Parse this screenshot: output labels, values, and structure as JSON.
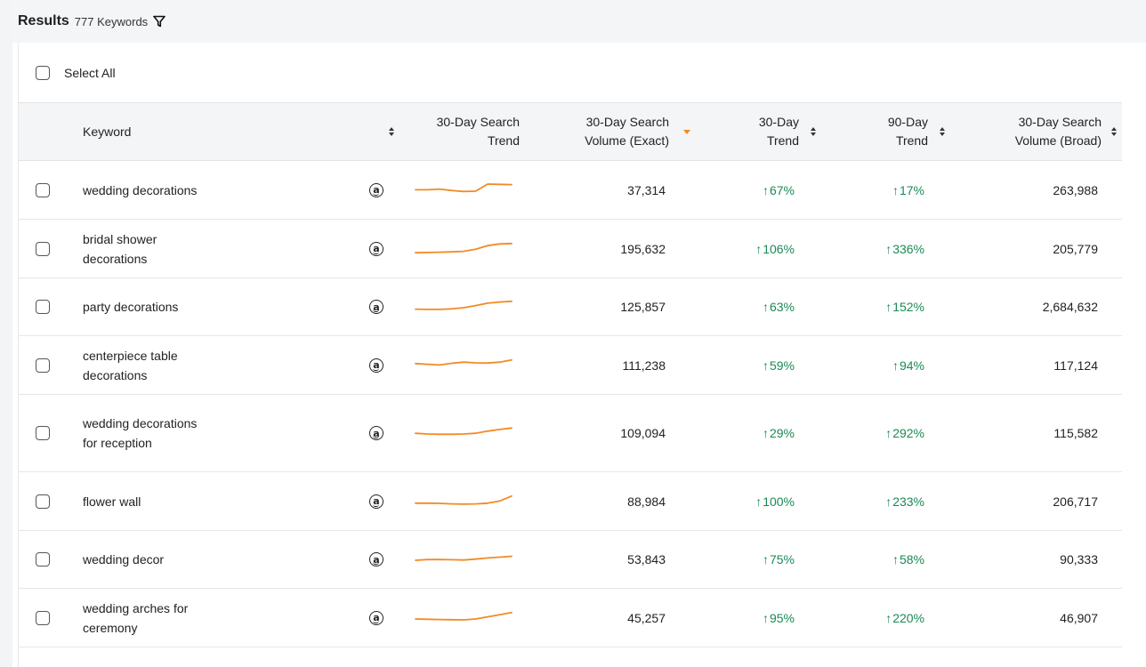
{
  "header": {
    "title": "Results",
    "count": "777 Keywords",
    "filter_icon": "filter-icon"
  },
  "select_all": {
    "label": "Select All"
  },
  "columns": {
    "keyword": "Keyword",
    "trend_line_1": "30-Day Search",
    "trend_line_2": "Trend",
    "vol_line_1": "30-Day Search",
    "vol_line_2": "Volume (Exact)",
    "t30_line_1": "30-Day",
    "t30_line_2": "Trend",
    "t90_line_1": "90-Day",
    "t90_line_2": "Trend",
    "broad_line_1": "30-Day Search",
    "broad_line_2": "Volume (Broad)"
  },
  "colors": {
    "accent": "#f28a24",
    "positive": "#1a8a55",
    "header_bg": "#f4f5f6"
  },
  "rows": [
    {
      "keyword": "wedding decorations",
      "volume_exact": "37,314",
      "trend_30": "67%",
      "trend_90": "17%",
      "volume_broad": "263,988",
      "trend": [
        0.6,
        0.6,
        0.65,
        0.55,
        0.48,
        0.5,
        1.0,
        0.98,
        0.96
      ]
    },
    {
      "keyword": "bridal shower decorations",
      "volume_exact": "195,632",
      "trend_30": "106%",
      "trend_90": "336%",
      "volume_broad": "205,779",
      "trend": [
        0.3,
        0.32,
        0.34,
        0.36,
        0.4,
        0.55,
        0.8,
        0.92,
        0.95
      ]
    },
    {
      "keyword": "party decorations",
      "volume_exact": "125,857",
      "trend_30": "63%",
      "trend_90": "152%",
      "volume_broad": "2,684,632",
      "trend": [
        0.4,
        0.38,
        0.38,
        0.42,
        0.5,
        0.65,
        0.82,
        0.9,
        0.95
      ]
    },
    {
      "keyword": "centerpiece table decorations",
      "volume_exact": "111,238",
      "trend_30": "59%",
      "trend_90": "94%",
      "volume_broad": "117,124",
      "trend": [
        0.7,
        0.65,
        0.6,
        0.72,
        0.8,
        0.75,
        0.74,
        0.8,
        0.95
      ]
    },
    {
      "keyword": "wedding decorations for reception",
      "volume_exact": "109,094",
      "trend_30": "29%",
      "trend_90": "292%",
      "volume_broad": "115,582",
      "trend": [
        0.55,
        0.5,
        0.48,
        0.48,
        0.5,
        0.55,
        0.7,
        0.82,
        0.92
      ]
    },
    {
      "keyword": "flower wall",
      "volume_exact": "88,984",
      "trend_30": "100%",
      "trend_90": "233%",
      "volume_broad": "206,717",
      "trend": [
        0.45,
        0.45,
        0.44,
        0.4,
        0.38,
        0.4,
        0.45,
        0.6,
        0.95
      ]
    },
    {
      "keyword": "wedding decor",
      "volume_exact": "53,843",
      "trend_30": "75%",
      "trend_90": "58%",
      "volume_broad": "90,333",
      "trend": [
        0.5,
        0.55,
        0.55,
        0.54,
        0.52,
        0.58,
        0.66,
        0.72,
        0.78
      ]
    },
    {
      "keyword": "wedding arches for ceremony",
      "volume_exact": "45,257",
      "trend_30": "95%",
      "trend_90": "220%",
      "volume_broad": "46,907",
      "trend": [
        0.5,
        0.48,
        0.46,
        0.45,
        0.44,
        0.5,
        0.65,
        0.8,
        0.95
      ]
    }
  ]
}
